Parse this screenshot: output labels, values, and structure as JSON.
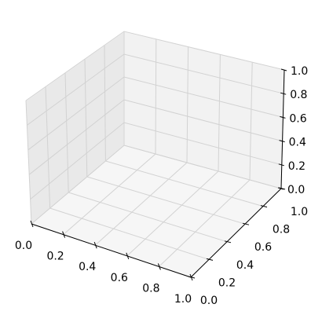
{
  "chart_data": {
    "type": "scatter",
    "projection": "3d",
    "title": "",
    "xlabel": "",
    "ylabel": "",
    "zlabel": "",
    "xlim": [
      0,
      1
    ],
    "ylim": [
      0,
      1
    ],
    "zlim": [
      0,
      1
    ],
    "x_ticks": [
      "0.0",
      "0.2",
      "0.4",
      "0.6",
      "0.8",
      "1.0"
    ],
    "y_ticks": [
      "0.0",
      "0.2",
      "0.4",
      "0.6",
      "0.8",
      "1.0"
    ],
    "z_ticks": [
      "0.0",
      "0.2",
      "0.4",
      "0.6",
      "0.8",
      "1.0"
    ],
    "grid": true,
    "series": []
  },
  "colors": {
    "pane_left": "#e9e9e9",
    "pane_back": "#f2f2f2",
    "pane_floor": "#f6f6f6",
    "grid": "#d2d2d2"
  }
}
